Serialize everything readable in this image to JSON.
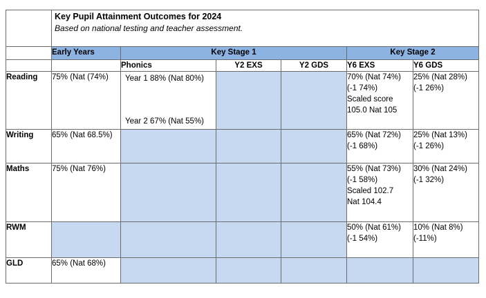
{
  "title": "Key Pupil Attainment Outcomes for 2024",
  "subtitle": "Based on national testing and teacher assessment.",
  "headers": {
    "early_years": "Early Years",
    "key_stage_1": "Key Stage 1",
    "key_stage_2": "Key Stage 2",
    "phonics": "Phonics",
    "y2_exs": "Y2 EXS",
    "y2_gds": "Y2 GDS",
    "y6_exs": "Y6 EXS",
    "y6_gds": "Y6 GDS"
  },
  "rows": {
    "reading": {
      "label": "Reading",
      "early_years": "75% (Nat (74%)",
      "phonics_year1": "Year 1 88% (Nat 80%)",
      "phonics_year2": "Year 2  67% (Nat 55%)",
      "y6_exs": [
        "70% (Nat 74%)",
        "(-1 74%)",
        "Scaled score",
        "105.0 Nat 105"
      ],
      "y6_gds": [
        "25% (Nat 28%)",
        "(-1 26%)"
      ]
    },
    "writing": {
      "label": "Writing",
      "early_years": "65% (Nat 68.5%)",
      "y6_exs": [
        "65% (Nat 72%)",
        "(-1 68%)"
      ],
      "y6_gds": [
        "25% (Nat 13%)",
        "(-1 26%)"
      ]
    },
    "maths": {
      "label": "Maths",
      "early_years": "75% (Nat 76%)",
      "y6_exs": [
        "55% (Nat 73%)",
        "(-1 58%)",
        "Scaled 102.7",
        "Nat 104.4"
      ],
      "y6_gds": [
        "30% (Nat 24%)",
        "(-1 32%)"
      ]
    },
    "rwm": {
      "label": "RWM",
      "y6_exs": [
        "50% (Nat 61%)",
        "(-1 54%)"
      ],
      "y6_gds": [
        "10% (Nat 8%)",
        "(-11%)"
      ]
    },
    "gld": {
      "label": "GLD",
      "early_years": "65% (Nat 68%)"
    }
  },
  "colors": {
    "header_band": "#8db3e2",
    "shaded_cell": "#c6d9f1",
    "border": "#6b6b6b"
  }
}
